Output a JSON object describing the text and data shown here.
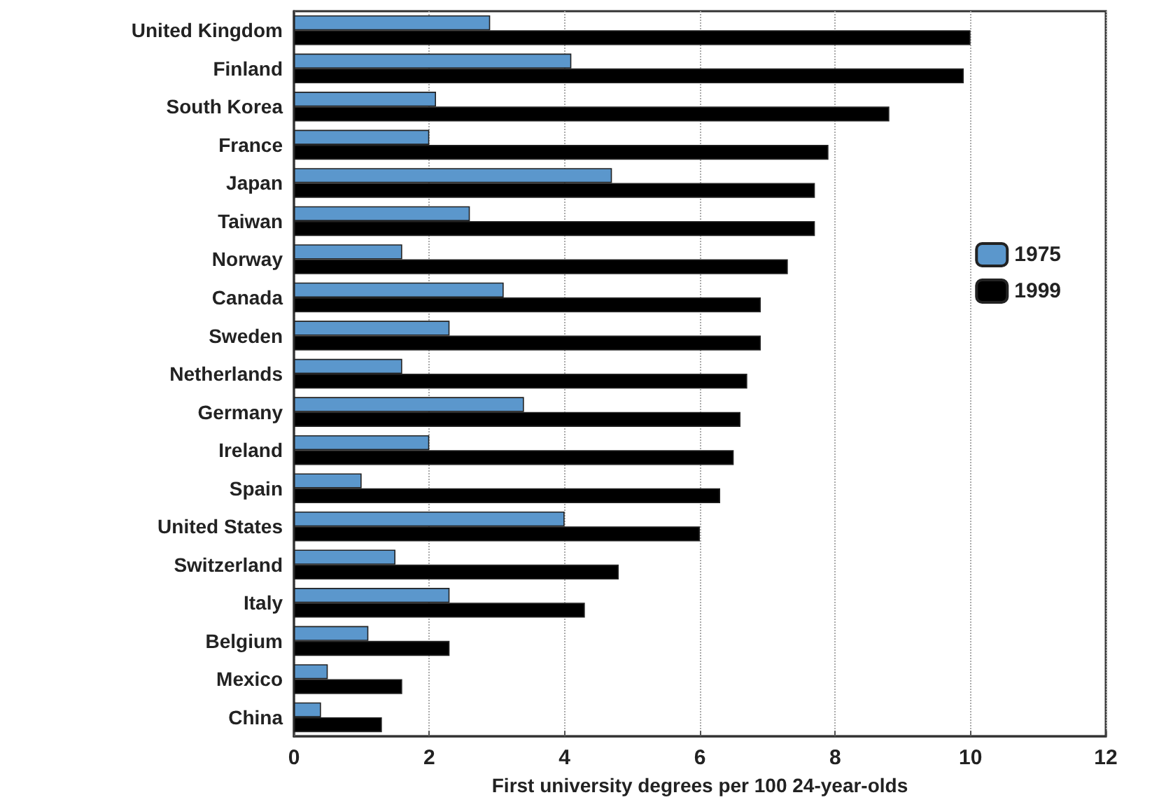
{
  "chart_data": {
    "type": "bar",
    "orientation": "horizontal",
    "xlabel": "First university degrees per 100 24-year-olds",
    "categories": [
      "United Kingdom",
      "Finland",
      "South Korea",
      "France",
      "Japan",
      "Taiwan",
      "Norway",
      "Canada",
      "Sweden",
      "Netherlands",
      "Germany",
      "Ireland",
      "Spain",
      "United States",
      "Switzerland",
      "Italy",
      "Belgium",
      "Mexico",
      "China"
    ],
    "series": [
      {
        "name": "1975",
        "color": "#5b97cc",
        "values": [
          2.9,
          4.1,
          2.1,
          2.0,
          4.7,
          2.6,
          1.6,
          3.1,
          2.3,
          1.6,
          3.4,
          2.0,
          1.0,
          4.0,
          1.5,
          2.3,
          1.1,
          0.5,
          0.4
        ]
      },
      {
        "name": "1999",
        "color": "#000000",
        "values": [
          10.0,
          9.9,
          8.8,
          7.9,
          7.7,
          7.7,
          7.3,
          6.9,
          6.9,
          6.7,
          6.6,
          6.5,
          6.3,
          6.0,
          4.8,
          4.3,
          2.3,
          1.6,
          1.3
        ]
      }
    ],
    "xlim": [
      0,
      12
    ],
    "xticks": [
      0,
      2,
      4,
      6,
      8,
      10,
      12
    ],
    "grid": "x",
    "legend": "right"
  }
}
